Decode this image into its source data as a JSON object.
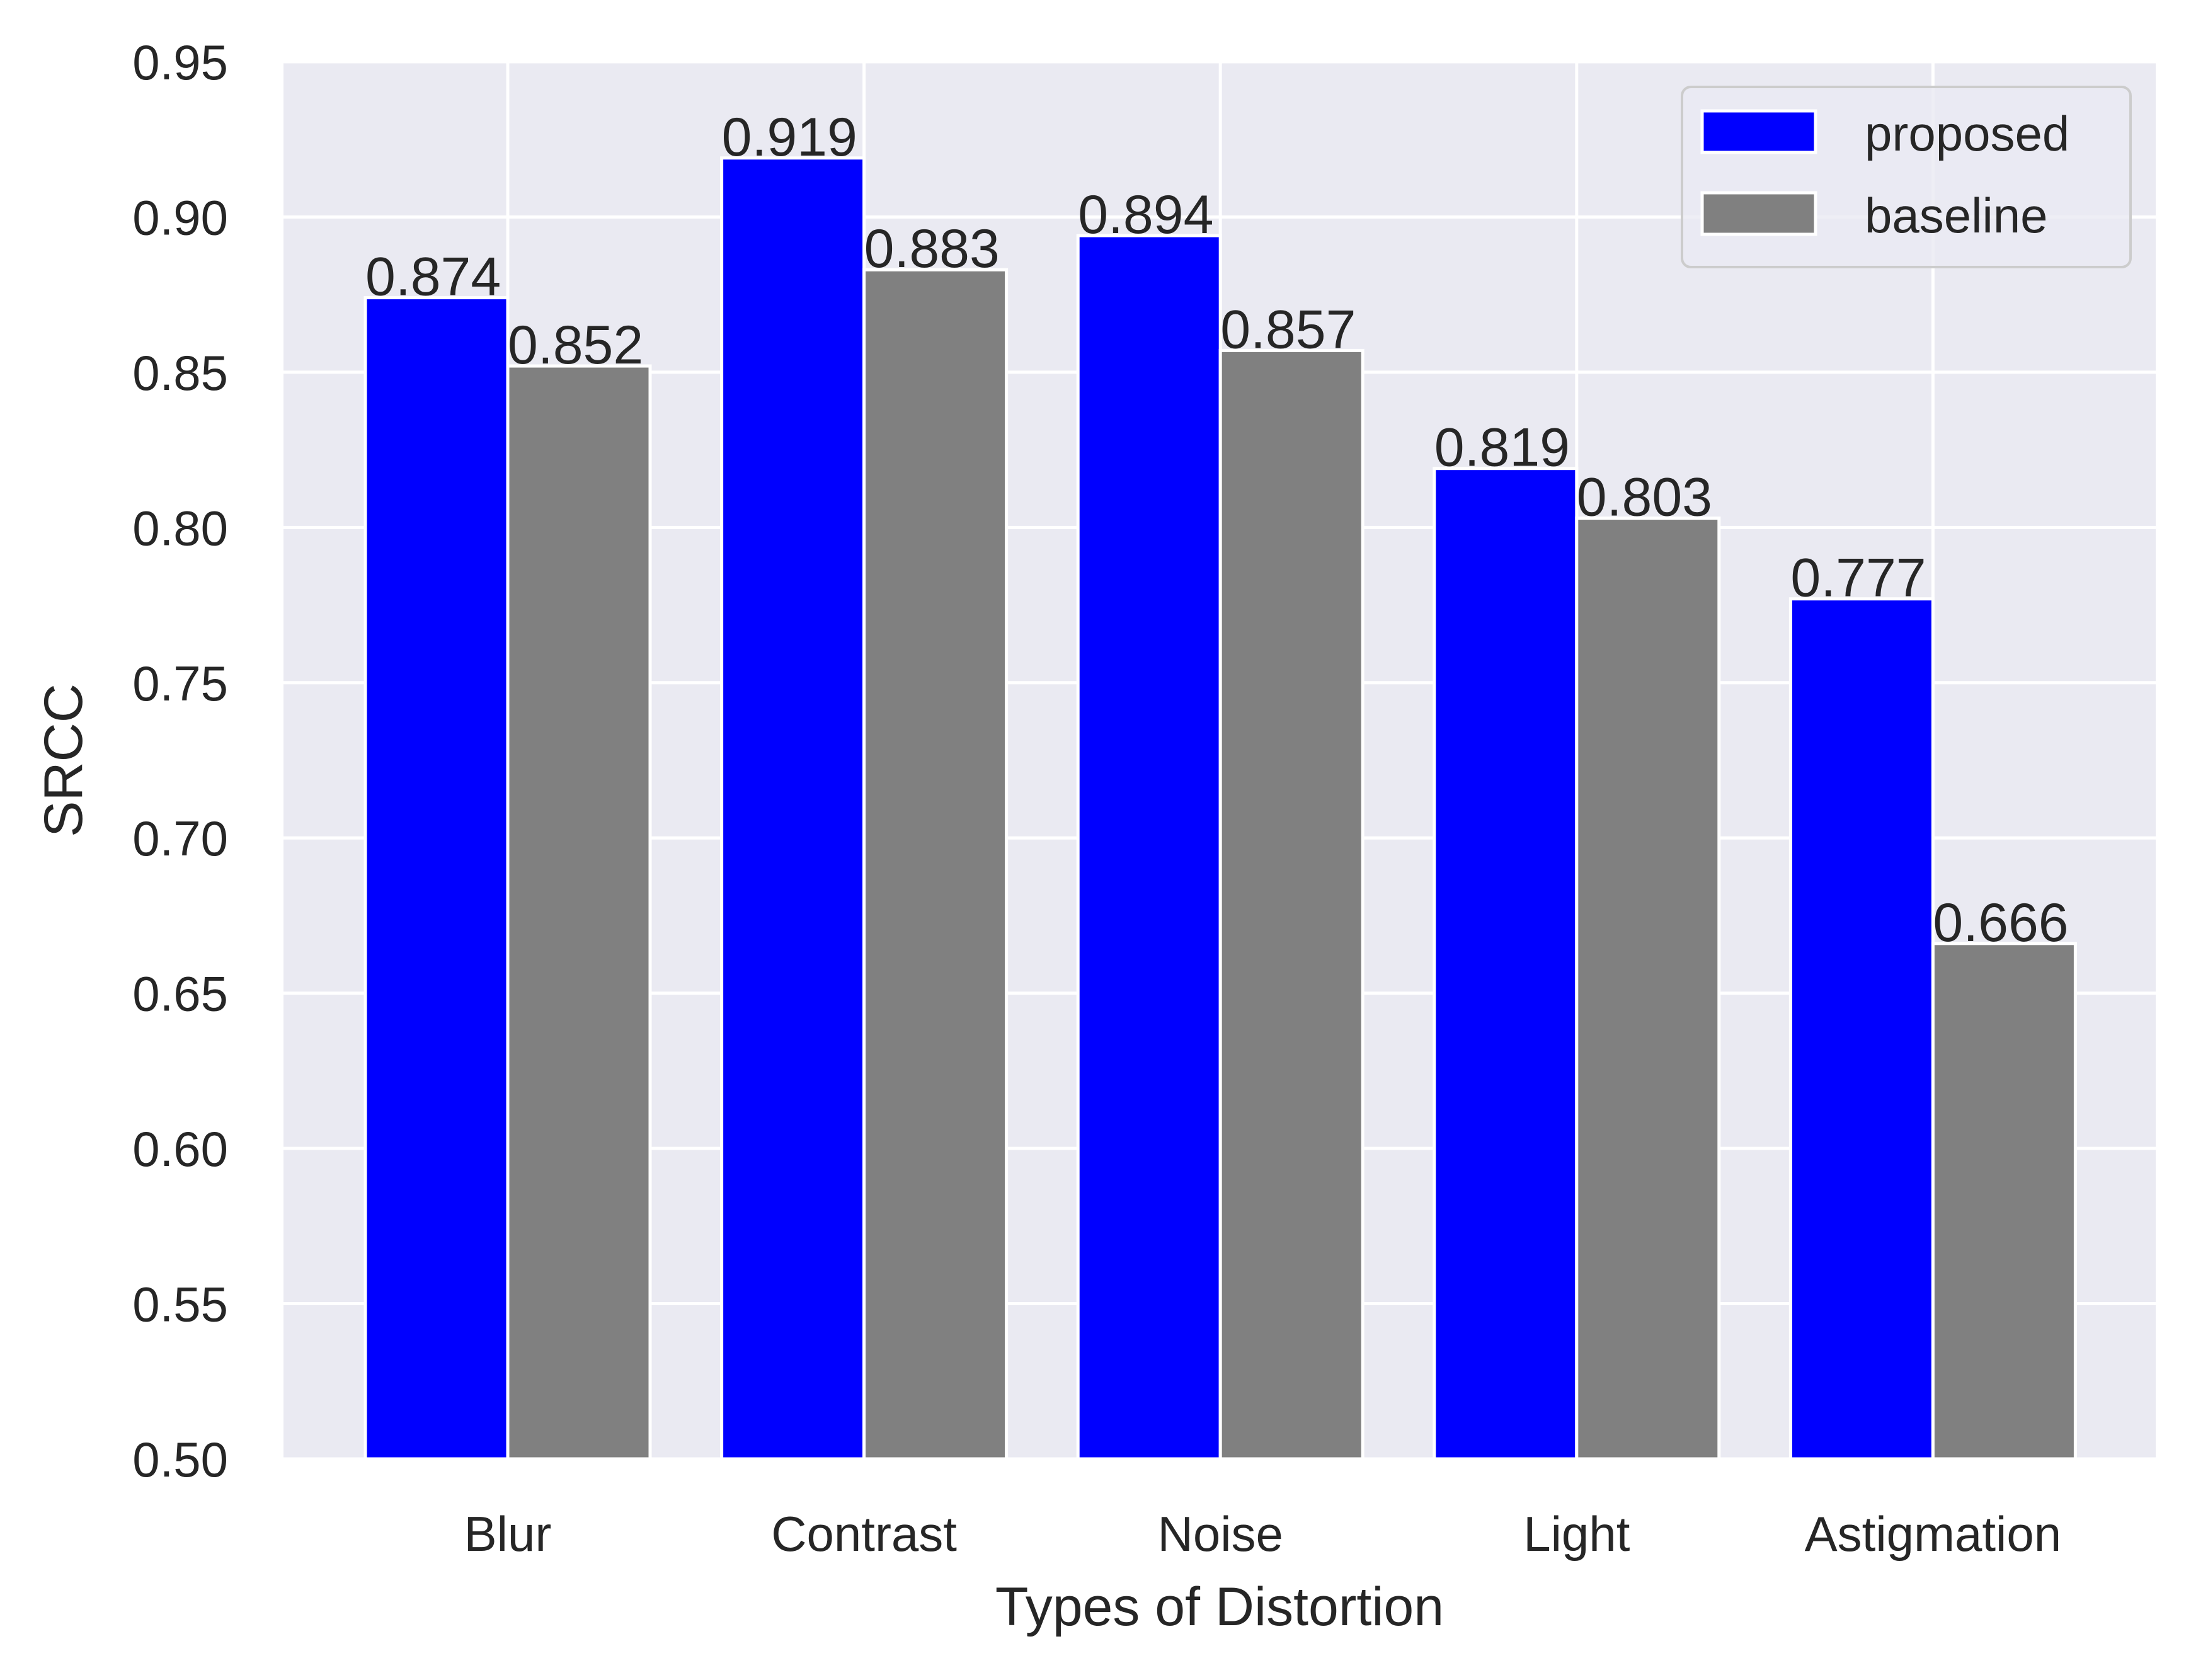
{
  "chart_data": {
    "type": "bar",
    "title": "",
    "xlabel": "Types of Distortion",
    "ylabel": "SRCC",
    "categories": [
      "Blur",
      "Contrast",
      "Noise",
      "Light",
      "Astigmation"
    ],
    "series": [
      {
        "name": "proposed",
        "color": "#0000ff",
        "values": [
          0.874,
          0.919,
          0.894,
          0.819,
          0.777
        ]
      },
      {
        "name": "baseline",
        "color": "#808080",
        "values": [
          0.852,
          0.883,
          0.857,
          0.803,
          0.666
        ]
      }
    ],
    "data_labels": [
      [
        "0.874",
        "0.919",
        "0.894",
        "0.819",
        "0.777"
      ],
      [
        "0.852",
        "0.883",
        "0.857",
        "0.803",
        "0.666"
      ]
    ],
    "ylim": [
      0.5,
      0.95
    ],
    "yticks": [
      "0.50",
      "0.55",
      "0.60",
      "0.65",
      "0.70",
      "0.75",
      "0.80",
      "0.85",
      "0.90",
      "0.95"
    ],
    "grid": true,
    "legend_position": "top-right",
    "colors": {
      "plot_background": "#eaeaf2",
      "grid": "#ffffff",
      "bar_edge": "#ffffff",
      "text": "#262626"
    }
  }
}
